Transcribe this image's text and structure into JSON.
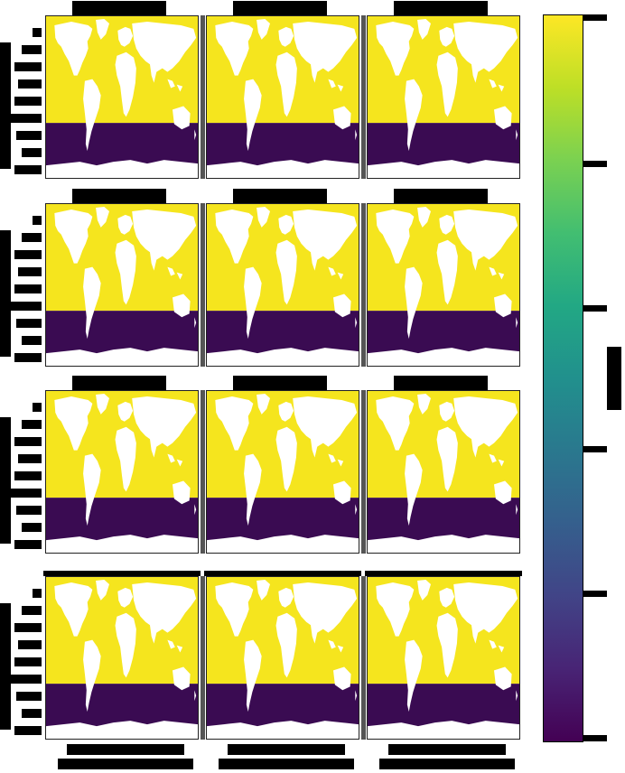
{
  "figure": {
    "panel_titles": [
      "",
      "",
      "",
      "",
      "",
      "",
      "",
      "",
      "",
      "",
      "",
      ""
    ],
    "colorbar_label": "",
    "colors": {
      "high": "#f5e51e",
      "low": "#3a0b52",
      "land": "#ffffff",
      "frame": "#1a1a1a"
    },
    "colormap": "viridis",
    "boundary_latitude_fraction": 0.66
  },
  "chart_data": {
    "type": "heatmap",
    "grid": {
      "rows": 4,
      "cols": 3
    },
    "description_values": {
      "north_of_boundary": "high",
      "south_of_boundary": "low"
    }
  }
}
